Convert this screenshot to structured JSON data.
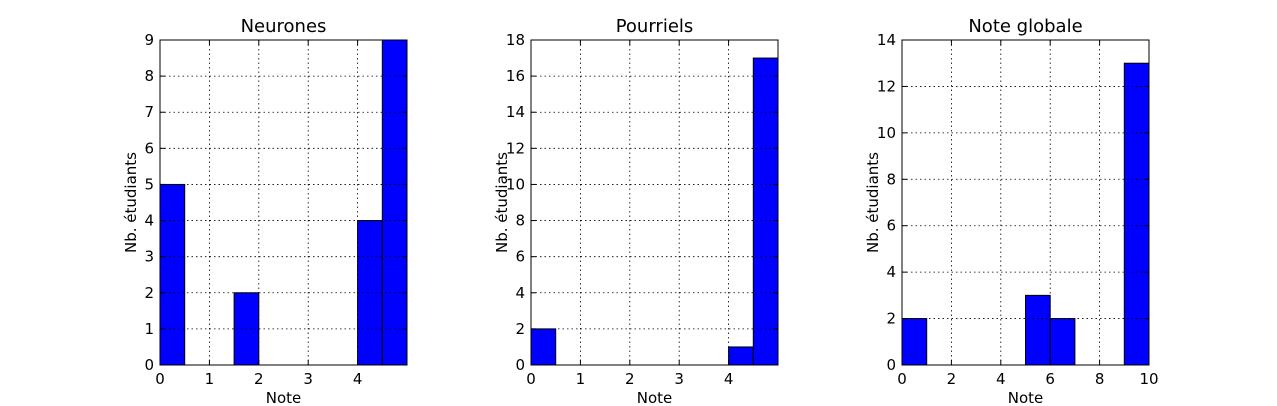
{
  "colors": {
    "bar": "#0000ff",
    "background": "#ffffff",
    "axis": "#000000"
  },
  "chart_data": [
    {
      "type": "bar",
      "title": "Neurones",
      "xlabel": "Note",
      "ylabel": "Nb. étudiants",
      "xlim": [
        0,
        5
      ],
      "ylim": [
        0,
        9
      ],
      "xticks": [
        0,
        1,
        2,
        3,
        4
      ],
      "yticks": [
        0,
        1,
        2,
        3,
        4,
        5,
        6,
        7,
        8,
        9
      ],
      "grid": true,
      "bin_edges": [
        0,
        0.5,
        1,
        1.5,
        2,
        2.5,
        3,
        3.5,
        4,
        4.5,
        5
      ],
      "values": [
        5,
        0,
        0,
        2,
        0,
        0,
        0,
        0,
        4,
        9
      ]
    },
    {
      "type": "bar",
      "title": "Pourriels",
      "xlabel": "Note",
      "ylabel": "Nb. étudiants",
      "xlim": [
        0,
        5
      ],
      "ylim": [
        0,
        18
      ],
      "xticks": [
        0,
        1,
        2,
        3,
        4
      ],
      "yticks": [
        0,
        2,
        4,
        6,
        8,
        10,
        12,
        14,
        16,
        18
      ],
      "grid": true,
      "bin_edges": [
        0,
        0.5,
        1,
        1.5,
        2,
        2.5,
        3,
        3.5,
        4,
        4.5,
        5
      ],
      "values": [
        2,
        0,
        0,
        0,
        0,
        0,
        0,
        0,
        1,
        17
      ]
    },
    {
      "type": "bar",
      "title": "Note globale",
      "xlabel": "Note",
      "ylabel": "Nb. étudiants",
      "xlim": [
        0,
        10
      ],
      "ylim": [
        0,
        14
      ],
      "xticks": [
        0,
        2,
        4,
        6,
        8,
        10
      ],
      "yticks": [
        0,
        2,
        4,
        6,
        8,
        10,
        12,
        14
      ],
      "grid": true,
      "bin_edges": [
        0,
        1,
        2,
        3,
        4,
        5,
        6,
        7,
        8,
        9,
        10
      ],
      "values": [
        2,
        0,
        0,
        0,
        0,
        3,
        2,
        0,
        0,
        13
      ]
    }
  ]
}
